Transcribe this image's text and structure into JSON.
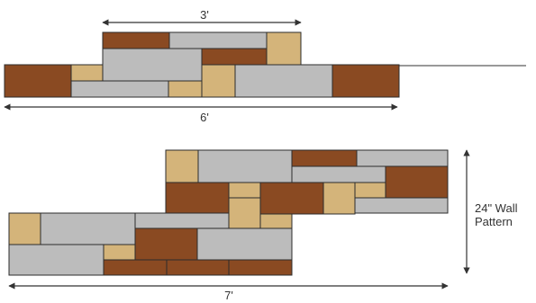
{
  "colors": {
    "brown": "#8a4a22",
    "gray": "#bcbcbc",
    "tan": "#d4b47a",
    "outline": "#2c2c2c",
    "dimension_line": "#333333"
  },
  "top_pattern": {
    "upper_width_label": "3'",
    "base_width_label": "6'"
  },
  "bottom_pattern": {
    "width_label": "7'",
    "height_label_line1": "24\" Wall",
    "height_label_line2": "Pattern"
  }
}
